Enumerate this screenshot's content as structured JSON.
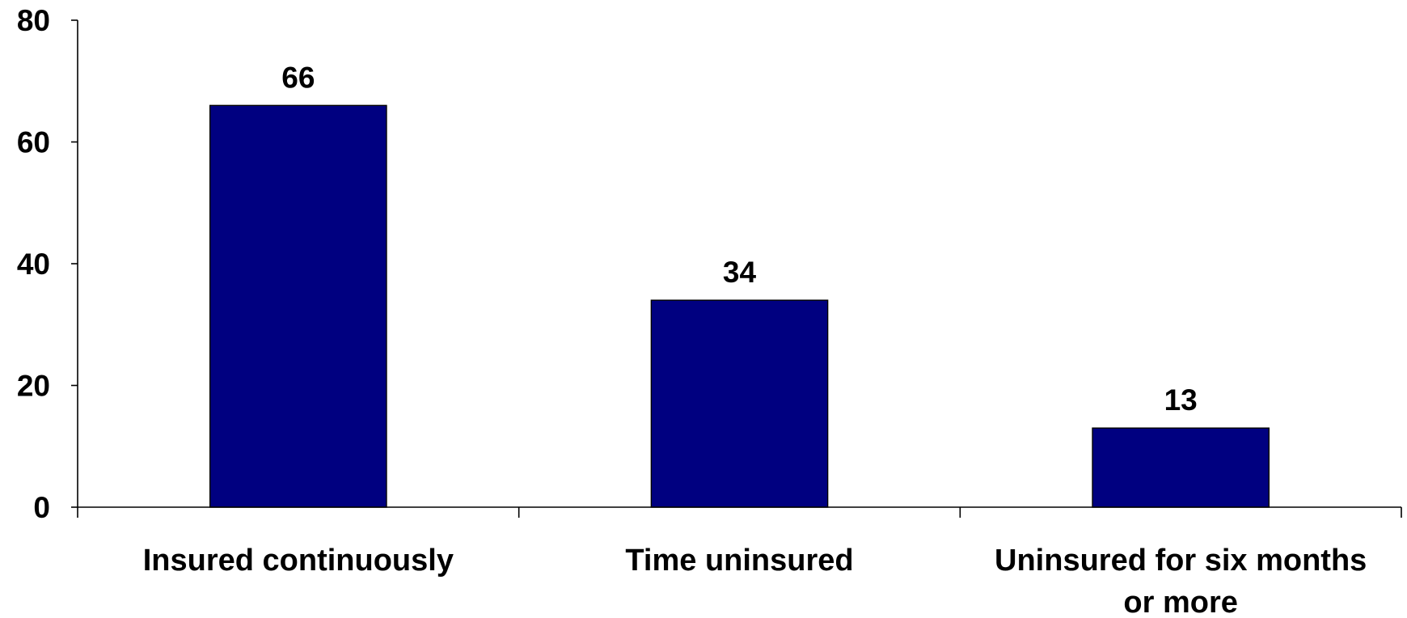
{
  "chart_data": {
    "type": "bar",
    "categories": [
      [
        "Insured continuously"
      ],
      [
        "Time uninsured"
      ],
      [
        "Uninsured for six months",
        "or more"
      ]
    ],
    "values": [
      66,
      34,
      13
    ],
    "data_labels": [
      "66",
      "34",
      "13"
    ],
    "title": "",
    "xlabel": "",
    "ylabel": "",
    "ylim": [
      0,
      80
    ],
    "yticks": [
      0,
      20,
      40,
      60,
      80
    ],
    "ytick_labels": [
      "0",
      "20",
      "40",
      "60",
      "80"
    ],
    "grid": false,
    "legend": "none",
    "bar_color": "#000080"
  }
}
